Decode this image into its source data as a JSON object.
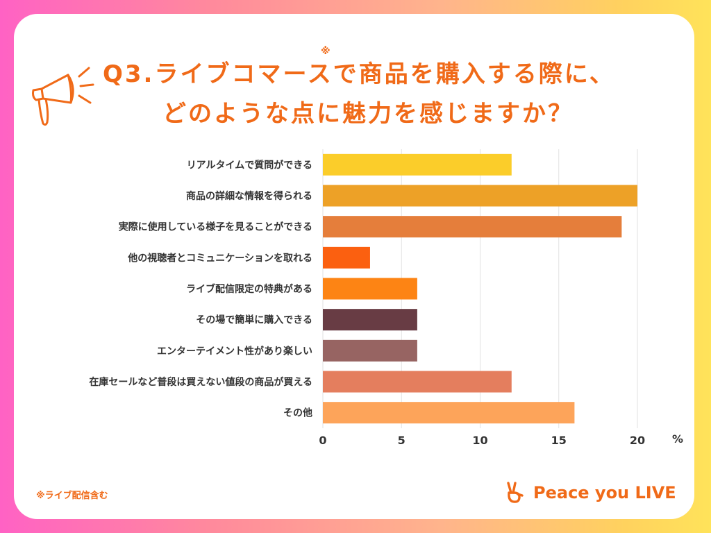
{
  "title": {
    "line1": "Q3.ライブコマースで商品を購入する際に、",
    "line2": "どのような点に魅力を感じますか？",
    "note_mark": "※"
  },
  "footnote": "※ライブ配信含む",
  "brand": {
    "name": "Peace you LIVE"
  },
  "chart_data": {
    "type": "bar",
    "orientation": "horizontal",
    "title": "Q3.ライブコマースで商品を購入する際に、どのような点に魅力を感じますか？",
    "categories": [
      "リアルタイムで質問ができる",
      "商品の詳細な情報を得られる",
      "実際に使用している様子を見ることができる",
      "他の視聴者とコミュニケーションを取れる",
      "ライブ配信限定の特典がある",
      "その場で簡単に購入できる",
      "エンターテイメント性があり楽しい",
      "在庫セールなど普段は買えない値段の商品が買える",
      "その他"
    ],
    "values": [
      12,
      20,
      19,
      3,
      6,
      6,
      6,
      12,
      16
    ],
    "colors": [
      "#fbcd2a",
      "#eda127",
      "#e57e3b",
      "#fb6010",
      "#fd8414",
      "#683c44",
      "#976462",
      "#e47e5e",
      "#fda45a"
    ],
    "xlim": [
      0,
      20
    ],
    "xticks": [
      0,
      5,
      10,
      15,
      20
    ],
    "unit": "%",
    "grid": true
  }
}
